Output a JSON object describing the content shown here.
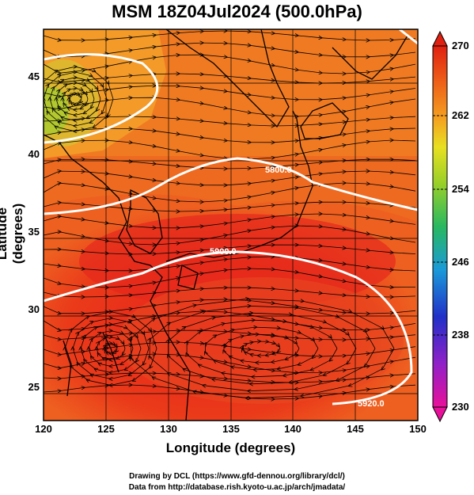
{
  "title": "MSM 18Z04Jul2024 (500.0hPa)",
  "axes": {
    "xlabel": "Longitude (degrees)",
    "ylabel": "Latitude  (degrees)",
    "xticks": [
      "120",
      "125",
      "130",
      "135",
      "140",
      "145",
      "150"
    ],
    "yticks": [
      "25",
      "30",
      "35",
      "40",
      "45"
    ],
    "xrange": [
      120,
      150
    ],
    "yrange": [
      22.4,
      47.6
    ]
  },
  "colorbar": {
    "ticks": [
      "270",
      "262",
      "254",
      "246",
      "238",
      "230"
    ],
    "range": [
      230,
      270
    ],
    "colors": [
      "#e8109a",
      "#a020d0",
      "#2030c8",
      "#1a8fd8",
      "#20c8c0",
      "#28b860",
      "#8ad028",
      "#e0e020",
      "#f4a020",
      "#ee6018",
      "#e02010"
    ]
  },
  "contours": [
    {
      "label": "5800.0"
    },
    {
      "label": "5900.0"
    },
    {
      "label": "5920.0"
    }
  ],
  "credits": {
    "line1": "Drawing by DCL (https://www.gfd-dennou.org/library/dcl/)",
    "line2": "Data from http://database.rish.kyoto-u.ac.jp/arch/jmadata/"
  }
}
